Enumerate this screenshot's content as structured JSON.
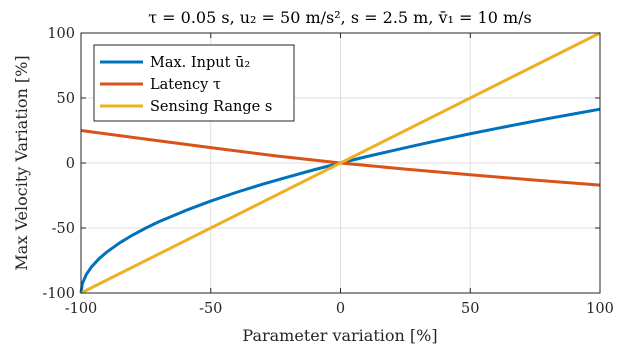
{
  "chart_data": {
    "type": "line",
    "title": "τ = 0.05 s, u₂ = 50 m/s², s = 2.5 m, v̄₁ = 10 m/s",
    "xlabel": "Parameter variation [%]",
    "ylabel": "Max Velocity Variation [%]",
    "xlim": [
      -100,
      100
    ],
    "ylim": [
      -100,
      100
    ],
    "xticks": [
      -100,
      -50,
      0,
      50,
      100
    ],
    "yticks": [
      -100,
      -50,
      0,
      50,
      100
    ],
    "xtick_labels": [
      "-100",
      "-50",
      "0",
      "50",
      "100"
    ],
    "ytick_labels": [
      "-100",
      "-50",
      "0",
      "50",
      "100"
    ],
    "grid": true,
    "legend_position": "top-left",
    "series": [
      {
        "name": "Max. Input ū₂",
        "color": "#0072BD",
        "x": [
          -100,
          -99.5,
          -98,
          -96,
          -93,
          -90,
          -85,
          -80,
          -75,
          -70,
          -60,
          -50,
          -40,
          -30,
          -20,
          -10,
          0,
          10,
          20,
          30,
          40,
          50,
          60,
          70,
          80,
          90,
          100
        ],
        "y": [
          -100,
          -92.9,
          -85.9,
          -80.0,
          -73.5,
          -68.4,
          -61.3,
          -55.3,
          -50.0,
          -45.2,
          -36.8,
          -29.3,
          -22.5,
          -16.3,
          -10.6,
          -5.1,
          0,
          4.9,
          9.5,
          14.0,
          18.3,
          22.5,
          26.5,
          30.4,
          34.2,
          37.8,
          41.4
        ]
      },
      {
        "name": "Latency τ",
        "color": "#D95319",
        "x": [
          -100,
          -75,
          -50,
          -25,
          0,
          25,
          50,
          75,
          100
        ],
        "y": [
          25,
          18.4,
          11.8,
          5.5,
          0,
          -4.7,
          -9.0,
          -13.2,
          -17.0
        ]
      },
      {
        "name": "Sensing Range s",
        "color": "#EDB120",
        "x": [
          -100,
          100
        ],
        "y": [
          -100,
          100
        ]
      }
    ]
  }
}
